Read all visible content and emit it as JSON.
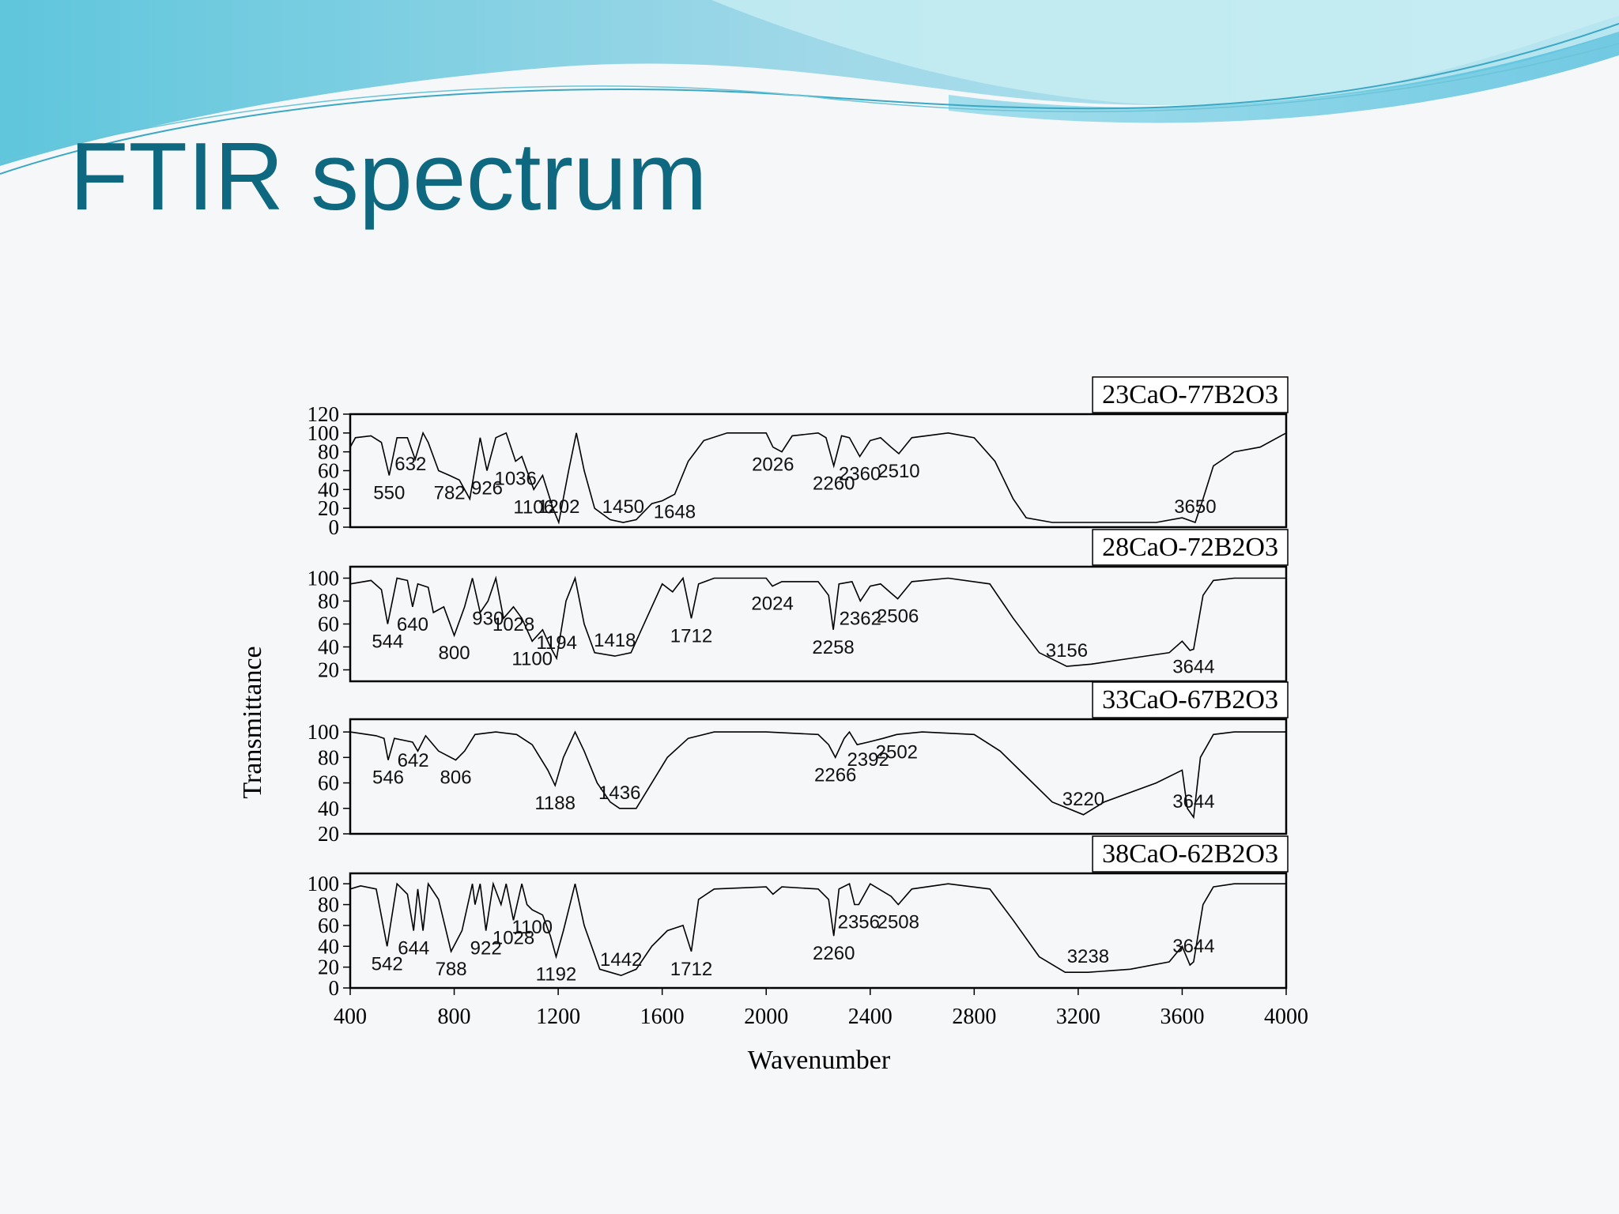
{
  "title": "FTIR spectrum",
  "y_label": "Transmittance",
  "x_label": "Wavenumber",
  "chart_data": [
    {
      "type": "line",
      "title": "23CaO-77B2O3",
      "xlim": [
        400,
        4000
      ],
      "ylim": [
        0,
        120
      ],
      "yticks": [
        0,
        20,
        40,
        60,
        80,
        100,
        120
      ],
      "series": [
        {
          "color": "#000000",
          "x": [
            400,
            420,
            480,
            520,
            550,
            580,
            620,
            650,
            680,
            700,
            740,
            782,
            820,
            860,
            900,
            926,
            960,
            1000,
            1036,
            1060,
            1106,
            1140,
            1180,
            1202,
            1240,
            1270,
            1300,
            1340,
            1400,
            1450,
            1500,
            1560,
            1600,
            1648,
            1700,
            1760,
            1850,
            2000,
            2026,
            2060,
            2100,
            2200,
            2230,
            2260,
            2290,
            2320,
            2360,
            2400,
            2440,
            2480,
            2510,
            2560,
            2700,
            2800,
            2880,
            2950,
            3000,
            3100,
            3300,
            3500,
            3600,
            3650,
            3680,
            3720,
            3800,
            3900,
            4000
          ],
          "values": [
            85,
            95,
            97,
            90,
            55,
            95,
            95,
            72,
            100,
            90,
            60,
            55,
            50,
            30,
            95,
            60,
            95,
            100,
            70,
            75,
            40,
            55,
            20,
            5,
            60,
            100,
            60,
            20,
            8,
            5,
            8,
            25,
            28,
            35,
            70,
            92,
            100,
            100,
            85,
            80,
            97,
            100,
            95,
            65,
            97,
            95,
            75,
            92,
            95,
            85,
            78,
            95,
            100,
            95,
            70,
            30,
            10,
            5,
            5,
            5,
            10,
            5,
            30,
            65,
            80,
            85,
            100
          ]
        }
      ],
      "peaks": [
        550,
        632,
        782,
        926,
        1036,
        1106,
        1202,
        1450,
        1648,
        2026,
        2260,
        2360,
        2510,
        3650
      ]
    },
    {
      "type": "line",
      "title": "28CaO-72B2O3",
      "xlim": [
        400,
        4000
      ],
      "ylim": [
        10,
        110
      ],
      "yticks": [
        20,
        40,
        60,
        80,
        100
      ],
      "series": [
        {
          "color": "#000000",
          "x": [
            400,
            480,
            520,
            544,
            580,
            620,
            640,
            660,
            700,
            720,
            760,
            800,
            840,
            870,
            900,
            930,
            960,
            990,
            1028,
            1060,
            1100,
            1140,
            1170,
            1194,
            1230,
            1265,
            1300,
            1340,
            1418,
            1480,
            1540,
            1600,
            1640,
            1680,
            1712,
            1740,
            1800,
            2000,
            2024,
            2060,
            2200,
            2240,
            2258,
            2280,
            2330,
            2362,
            2400,
            2440,
            2480,
            2506,
            2560,
            2700,
            2860,
            2950,
            3050,
            3156,
            3250,
            3400,
            3550,
            3600,
            3630,
            3644,
            3680,
            3720,
            3800,
            4000
          ],
          "values": [
            95,
            98,
            90,
            60,
            100,
            98,
            75,
            95,
            92,
            70,
            75,
            50,
            75,
            100,
            70,
            80,
            100,
            65,
            75,
            65,
            45,
            55,
            40,
            30,
            80,
            100,
            60,
            35,
            32,
            35,
            65,
            95,
            88,
            100,
            65,
            95,
            100,
            100,
            93,
            97,
            97,
            85,
            55,
            95,
            97,
            80,
            93,
            95,
            87,
            82,
            97,
            100,
            95,
            65,
            35,
            23,
            25,
            30,
            35,
            45,
            37,
            38,
            85,
            98,
            100,
            100
          ]
        }
      ],
      "peaks": [
        544,
        640,
        800,
        930,
        1028,
        1100,
        1194,
        1418,
        1712,
        2024,
        2258,
        2362,
        2506,
        3156,
        3644
      ]
    },
    {
      "type": "line",
      "title": "33CaO-67B2O3",
      "xlim": [
        400,
        4000
      ],
      "ylim": [
        20,
        110
      ],
      "yticks": [
        20,
        40,
        60,
        80,
        100
      ],
      "series": [
        {
          "color": "#000000",
          "x": [
            400,
            500,
            530,
            546,
            570,
            640,
            660,
            690,
            740,
            806,
            840,
            880,
            960,
            1040,
            1100,
            1160,
            1188,
            1220,
            1265,
            1300,
            1350,
            1400,
            1436,
            1500,
            1560,
            1620,
            1700,
            1800,
            2000,
            2200,
            2240,
            2266,
            2300,
            2320,
            2350,
            2392,
            2450,
            2502,
            2600,
            2800,
            2900,
            3000,
            3100,
            3220,
            3300,
            3500,
            3600,
            3620,
            3644,
            3670,
            3720,
            3800,
            4000
          ],
          "values": [
            100,
            97,
            95,
            78,
            95,
            92,
            85,
            97,
            85,
            78,
            85,
            98,
            100,
            98,
            90,
            70,
            58,
            80,
            100,
            85,
            60,
            45,
            40,
            40,
            60,
            80,
            95,
            100,
            100,
            98,
            90,
            80,
            95,
            100,
            90,
            92,
            95,
            98,
            100,
            98,
            85,
            65,
            45,
            35,
            45,
            60,
            70,
            40,
            33,
            80,
            98,
            100,
            100
          ]
        }
      ],
      "peaks": [
        546,
        642,
        806,
        1188,
        1436,
        2266,
        2392,
        2502,
        3220,
        3644
      ]
    },
    {
      "type": "line",
      "title": "38CaO-62B2O3",
      "xlim": [
        400,
        4000
      ],
      "ylim": [
        0,
        110
      ],
      "yticks": [
        0,
        20,
        40,
        60,
        80,
        100
      ],
      "xticks": [
        400,
        800,
        1200,
        1600,
        2000,
        2400,
        2800,
        3200,
        3600,
        4000
      ],
      "series": [
        {
          "color": "#000000",
          "x": [
            400,
            440,
            500,
            542,
            580,
            620,
            644,
            660,
            680,
            700,
            740,
            788,
            830,
            870,
            880,
            900,
            922,
            950,
            980,
            1000,
            1028,
            1060,
            1080,
            1100,
            1140,
            1170,
            1192,
            1220,
            1265,
            1300,
            1360,
            1442,
            1500,
            1560,
            1620,
            1680,
            1712,
            1740,
            1800,
            2000,
            2026,
            2060,
            2200,
            2240,
            2260,
            2280,
            2320,
            2340,
            2356,
            2400,
            2480,
            2508,
            2560,
            2700,
            2860,
            2950,
            3050,
            3150,
            3238,
            3400,
            3550,
            3600,
            3630,
            3644,
            3680,
            3720,
            3800,
            4000
          ],
          "values": [
            95,
            98,
            95,
            40,
            100,
            90,
            55,
            95,
            55,
            100,
            85,
            35,
            55,
            100,
            80,
            100,
            55,
            100,
            80,
            100,
            65,
            100,
            80,
            75,
            70,
            50,
            30,
            55,
            100,
            60,
            18,
            12,
            18,
            40,
            55,
            60,
            35,
            85,
            95,
            97,
            90,
            97,
            95,
            85,
            50,
            95,
            100,
            80,
            80,
            100,
            88,
            80,
            95,
            100,
            95,
            65,
            30,
            15,
            15,
            18,
            25,
            40,
            22,
            25,
            80,
            97,
            100,
            100
          ]
        }
      ],
      "peaks": [
        542,
        644,
        788,
        922,
        1028,
        1100,
        1192,
        1442,
        1712,
        2260,
        2356,
        2508,
        3238,
        3644
      ]
    }
  ]
}
